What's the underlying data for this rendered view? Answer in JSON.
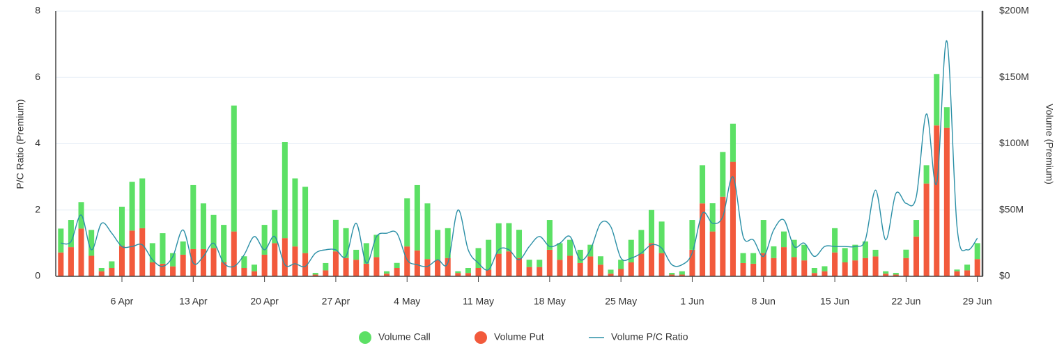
{
  "chart_data": {
    "type": "bar",
    "ylabel": "P/C Ratio (Premium)",
    "y2label": "Volume (Premium)",
    "categories": [
      null,
      null,
      null,
      null,
      null,
      null,
      "6 Apr",
      null,
      null,
      null,
      null,
      null,
      null,
      "13 Apr",
      null,
      null,
      null,
      null,
      null,
      null,
      "20 Apr",
      null,
      null,
      null,
      null,
      null,
      null,
      "27 Apr",
      null,
      null,
      null,
      null,
      null,
      null,
      "4 May",
      null,
      null,
      null,
      null,
      null,
      null,
      "11 May",
      null,
      null,
      null,
      null,
      null,
      null,
      "18 May",
      null,
      null,
      null,
      null,
      null,
      null,
      "25 May",
      null,
      null,
      null,
      null,
      null,
      null,
      "1 Jun",
      null,
      null,
      null,
      null,
      null,
      null,
      "8 Jun",
      null,
      null,
      null,
      null,
      null,
      null,
      "15 Jun",
      null,
      null,
      null,
      null,
      null,
      null,
      "22 Jun",
      null,
      null,
      null,
      null,
      null,
      null,
      "29 Jun"
    ],
    "ylim": [
      0,
      8
    ],
    "yticks": [
      0,
      2,
      4,
      6,
      8
    ],
    "y2lim": [
      0,
      200
    ],
    "y2ticks": [
      {
        "value": 0,
        "label": "$0"
      },
      {
        "value": 50,
        "label": "$50M"
      },
      {
        "value": 100,
        "label": "$100M"
      },
      {
        "value": 150,
        "label": "$150M"
      },
      {
        "value": 200,
        "label": "$200M"
      }
    ],
    "grid": true,
    "stacked": true,
    "legend": "bottom",
    "series": [
      {
        "name": "Volume Put",
        "color": "#f25a3c",
        "axis": "y2",
        "legend_order": 1,
        "values": [
          18,
          22,
          36,
          15.5,
          3.8,
          6.3,
          23,
          34.5,
          36.3,
          10.5,
          9.5,
          7.5,
          16.3,
          20.5,
          20.5,
          21.3,
          10.5,
          33.8,
          6.3,
          3.8,
          16.3,
          25,
          28.8,
          22.5,
          17.5,
          1.3,
          4.5,
          18.8,
          13.8,
          12.5,
          9.5,
          14.5,
          2,
          6.3,
          22.5,
          19.5,
          13,
          12.5,
          13.8,
          2.5,
          2.5,
          6.3,
          5,
          17,
          18.8,
          13.8,
          7,
          7,
          20,
          12.5,
          15.5,
          10,
          15,
          8.8,
          2,
          5.5,
          10.5,
          17,
          25,
          17.5,
          1.3,
          1.3,
          20,
          55,
          33.8,
          60,
          86.3,
          10,
          9.5,
          17.5,
          13.8,
          22,
          14.5,
          12,
          2.5,
          3.8,
          18,
          10.5,
          12,
          13.8,
          15,
          2,
          1.3,
          13.8,
          30,
          70,
          113.8,
          112,
          3.8,
          4.5,
          13
        ]
      },
      {
        "name": "Volume Call",
        "color": "#5ce065",
        "axis": "y2",
        "legend_order": 0,
        "values": [
          18,
          20.5,
          20,
          19.5,
          2.5,
          5,
          29.5,
          36.8,
          37.5,
          14.5,
          23,
          10,
          10,
          48.3,
          34.5,
          25,
          28.3,
          95,
          8.8,
          5,
          22.5,
          25,
          72.5,
          51.3,
          50,
          1.3,
          5.5,
          23.8,
          22.5,
          7.5,
          15.5,
          16.8,
          1.8,
          3.8,
          36.3,
          49.3,
          42,
          22.5,
          22.5,
          1.3,
          3.8,
          15,
          22.5,
          23,
          21.3,
          21.3,
          5.5,
          5.5,
          22.5,
          12.5,
          12,
          10,
          8.8,
          6.3,
          3,
          7,
          17,
          18,
          25,
          23.8,
          1.3,
          2.5,
          22.5,
          28.8,
          21.3,
          33.8,
          28.8,
          7.5,
          8,
          25,
          8.8,
          11.8,
          13,
          11.8,
          3.8,
          3.8,
          18.3,
          10.8,
          11.8,
          12.5,
          5,
          1.8,
          1.3,
          6.3,
          12.5,
          13.8,
          38.8,
          15.5,
          1.3,
          4.3,
          12
        ]
      },
      {
        "name": "Volume P/C Ratio",
        "color": "#2a8fa6",
        "type": "line",
        "legend_order": 2,
        "values": [
          1.0,
          1.05,
          1.85,
          0.8,
          1.6,
          1.3,
          0.9,
          0.9,
          0.95,
          0.5,
          0.3,
          0.6,
          1.4,
          0.4,
          0.6,
          1.0,
          0.4,
          0.3,
          0.65,
          1.2,
          0.8,
          1.2,
          0.35,
          0.38,
          0.3,
          0.7,
          0.8,
          0.8,
          0.6,
          1.6,
          0.4,
          1.2,
          1.3,
          1.3,
          0.5,
          0.35,
          0.3,
          0.5,
          0.4,
          2.0,
          0.8,
          0.4,
          0.2,
          0.8,
          0.8,
          0.5,
          0.9,
          1.2,
          0.9,
          1.0,
          1.2,
          0.5,
          0.8,
          1.6,
          1.5,
          0.55,
          0.55,
          0.7,
          0.95,
          0.85,
          0.35,
          0.35,
          0.7,
          1.9,
          1.6,
          1.8,
          3.0,
          1.2,
          1.1,
          0.6,
          1.4,
          1.7,
          0.9,
          1.0,
          0.6,
          0.9,
          0.9,
          0.9,
          0.9,
          1.1,
          2.6,
          1.1,
          2.5,
          2.2,
          2.4,
          4.9,
          2.8,
          7.1,
          1.5,
          0.8,
          1.15
        ]
      }
    ]
  }
}
